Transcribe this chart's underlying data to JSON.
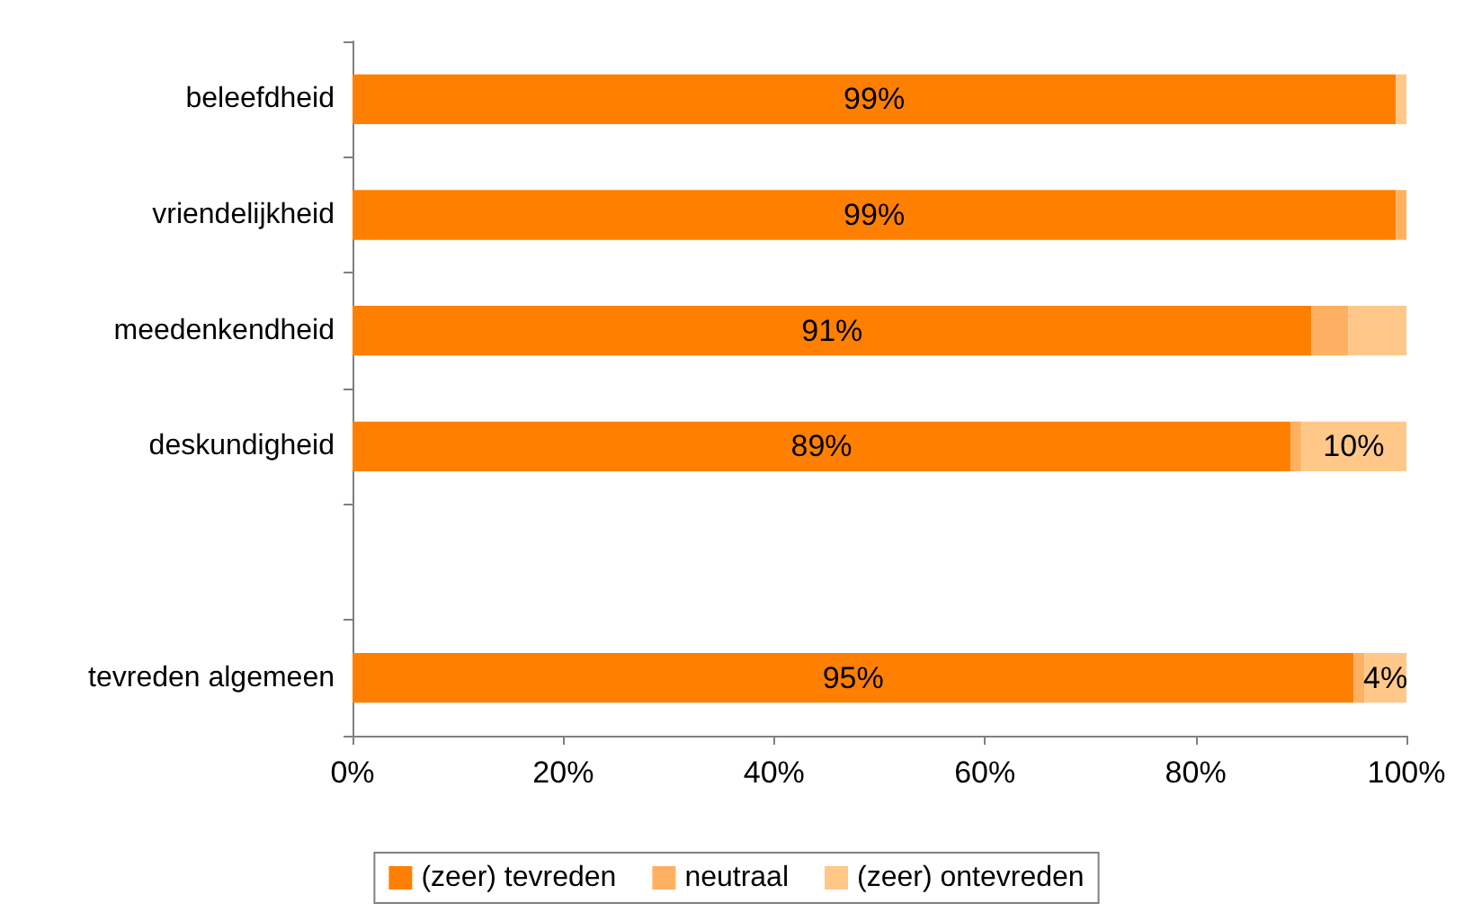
{
  "chart_data": {
    "type": "bar",
    "orientation": "horizontal",
    "stacked": true,
    "categories": [
      "beleefdheid",
      "vriendelijkheid",
      "meedenkendheid",
      "deskundigheid",
      null,
      "tevreden algemeen"
    ],
    "series": [
      {
        "name": "(zeer) tevreden",
        "color": "#ff8000",
        "values": [
          99,
          99,
          91,
          89,
          null,
          95
        ],
        "value_labels": [
          "99%",
          "99%",
          "91%",
          "89%",
          null,
          "95%"
        ]
      },
      {
        "name": "neutraal",
        "color": "#ffb060",
        "values": [
          0,
          1,
          3.5,
          1,
          null,
          1
        ],
        "value_labels": [
          null,
          null,
          null,
          null,
          null,
          null
        ]
      },
      {
        "name": "(zeer) ontevreden",
        "color": "#ffc888",
        "values": [
          1,
          0,
          5.5,
          10,
          null,
          4
        ],
        "value_labels": [
          null,
          null,
          null,
          "10%",
          null,
          "4%"
        ]
      }
    ],
    "xlim": [
      0,
      100
    ],
    "xticks": [
      {
        "value": 0,
        "label": "0%"
      },
      {
        "value": 20,
        "label": "20%"
      },
      {
        "value": 40,
        "label": "40%"
      },
      {
        "value": 60,
        "label": "60%"
      },
      {
        "value": 80,
        "label": "80%"
      },
      {
        "value": 100,
        "label": "100%"
      }
    ],
    "grid": false,
    "legend": "bottom"
  }
}
